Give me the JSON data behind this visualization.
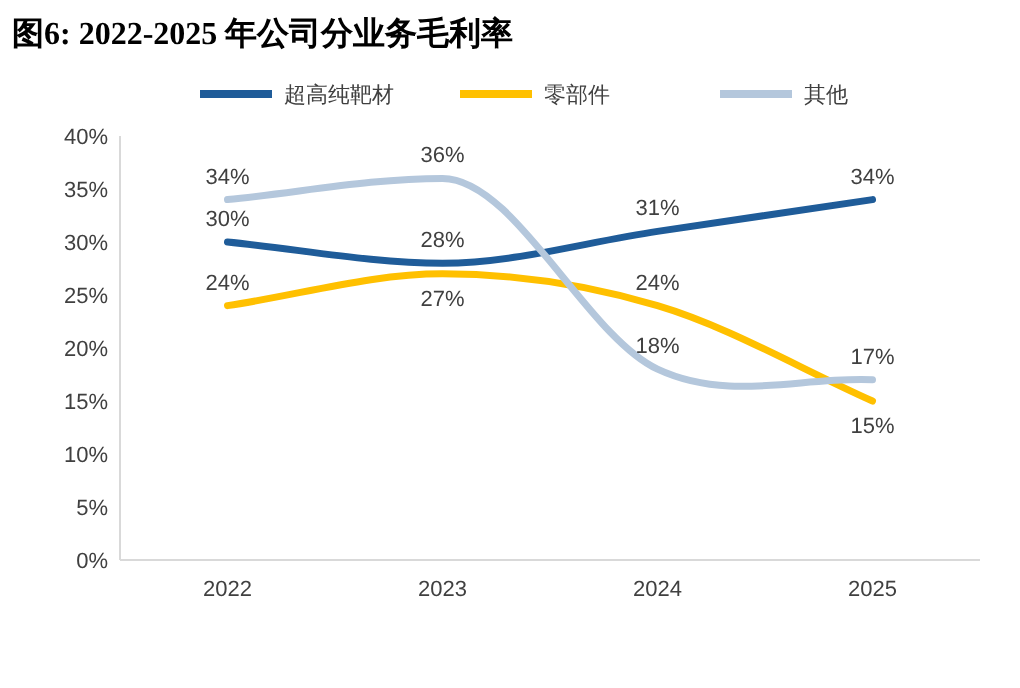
{
  "chart_data": {
    "type": "line",
    "title": "图6: 2022-2025 年公司分业务毛利率",
    "categories": [
      "2022",
      "2023",
      "2024",
      "2025"
    ],
    "series": [
      {
        "name": "超高纯靶材",
        "color": "#1f5c99",
        "values": [
          30,
          28,
          31,
          34
        ],
        "value_labels": [
          "30%",
          "28%",
          "31%",
          "34%"
        ]
      },
      {
        "name": "零部件",
        "color": "#ffc000",
        "values": [
          24,
          27,
          24,
          15
        ],
        "value_labels": [
          "24%",
          "27%",
          "24%",
          "15%"
        ]
      },
      {
        "name": "其他",
        "color": "#b4c7dc",
        "values": [
          34,
          36,
          18,
          17
        ],
        "value_labels": [
          "34%",
          "36%",
          "18%",
          "17%"
        ]
      }
    ],
    "ylim": [
      0,
      40
    ],
    "yticks": [
      {
        "value": 0,
        "label": "0%"
      },
      {
        "value": 5,
        "label": "5%"
      },
      {
        "value": 10,
        "label": "10%"
      },
      {
        "value": 15,
        "label": "15%"
      },
      {
        "value": 20,
        "label": "20%"
      },
      {
        "value": 25,
        "label": "25%"
      },
      {
        "value": 30,
        "label": "30%"
      },
      {
        "value": 35,
        "label": "35%"
      },
      {
        "value": 40,
        "label": "40%"
      }
    ],
    "legend": "top",
    "grid": false,
    "marker": "none",
    "line_style": "solid"
  }
}
